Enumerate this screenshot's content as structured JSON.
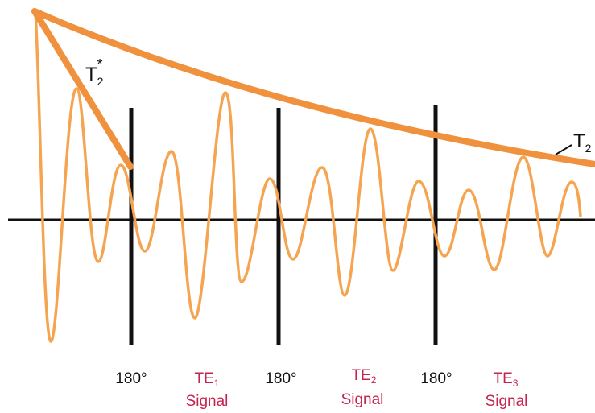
{
  "colors": {
    "signal": "#f5a552",
    "envelope": "#f0913d",
    "pulse": "#111111",
    "echo_label": "#c4244d",
    "text": "#111111"
  },
  "labels": {
    "t2star_base": "T",
    "t2star_sub": "2",
    "t2star_sup": "*",
    "t2_base": "T",
    "t2_sub": "2"
  },
  "pulses": [
    {
      "label": "180°"
    },
    {
      "label": "180°"
    },
    {
      "label": "180°"
    }
  ],
  "echoes": [
    {
      "base": "TE",
      "sub": "1",
      "word": "Signal"
    },
    {
      "base": "TE",
      "sub": "2",
      "word": "Signal"
    },
    {
      "base": "TE",
      "sub": "3",
      "word": "Signal"
    }
  ]
}
